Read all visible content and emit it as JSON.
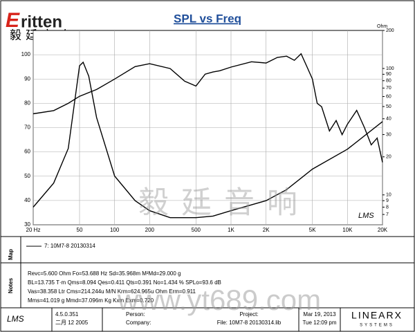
{
  "chart_data": {
    "type": "line",
    "title": "SPL vs Freq",
    "y2_label": "Ohm",
    "x_scale": "log",
    "y2_scale": "log",
    "grid": true,
    "xlim": [
      20,
      20000
    ],
    "xticks": [
      {
        "value": 20,
        "label": "20 Hz"
      },
      50,
      100,
      200,
      500,
      {
        "value": 1000,
        "label": "1K"
      },
      {
        "value": 2000,
        "label": "2K"
      },
      {
        "value": 5000,
        "label": "5K"
      },
      {
        "value": 10000,
        "label": "10K"
      },
      {
        "value": 20000,
        "label": "20K"
      }
    ],
    "ylim": [
      30,
      110
    ],
    "yticks": [
      30,
      40,
      50,
      60,
      70,
      80,
      90,
      100
    ],
    "y2lim": [
      5.8,
      200
    ],
    "y2ticks": [
      7,
      8,
      9,
      10,
      20,
      30,
      40,
      50,
      60,
      70,
      80,
      90,
      100,
      200
    ],
    "series": [
      {
        "color": "#000000",
        "x": [
          20,
          30,
          40,
          50,
          70,
          100,
          150,
          200,
          300,
          400,
          500,
          600,
          700,
          800,
          1000,
          1500,
          2000,
          2500,
          3000,
          3500,
          4000,
          4500,
          5000,
          5500,
          6000,
          7000,
          8000,
          9000,
          10000,
          12000,
          14000,
          16000,
          18000,
          20000
        ],
        "values": [
          75.7,
          77,
          80,
          82.9,
          85.7,
          90,
          95.1,
          96.3,
          94.3,
          89.1,
          87.1,
          92,
          92.9,
          93.4,
          94.9,
          97.1,
          96.6,
          98.9,
          99.4,
          97.7,
          100.4,
          94.9,
          90,
          80,
          78.6,
          68.6,
          72.9,
          67.1,
          71.4,
          77.1,
          70,
          62.9,
          65.7,
          55.7
        ]
      },
      {
        "color": "#000000",
        "axis": "y2",
        "x": [
          20,
          30,
          40,
          50,
          53.7,
          60,
          70,
          100,
          150,
          200,
          300,
          500,
          700,
          1000,
          2000,
          3000,
          5000,
          10000,
          20000
        ],
        "values": [
          8,
          12.4,
          23.3,
          105,
          112,
          87,
          41,
          14.1,
          9,
          7.5,
          6.6,
          6.6,
          6.8,
          7.5,
          9,
          11,
          16,
          23,
          38
        ]
      }
    ]
  },
  "header": {
    "logo_mark": "E",
    "logo_text": "ritten",
    "logo_cn": "毅廷音响",
    "watermark_cn": "毅廷音响",
    "watermark_url": "www.yt689.com",
    "lms": "LMS"
  },
  "map": {
    "label": "Map",
    "legend": "7: 10M7-8   20130314"
  },
  "notes": {
    "label": "Notes",
    "lines": [
      "Revc=5.600 Ohm  Fo=53.688 Hz  Sd=35.968m M²Md=29.000 g",
      "BL=13.735 T·m  Qms=8.094  Qes=0.411  Qts=0.391  No=1.434 %  SPLo=93.6 dB",
      "Vas=38.358 Ltr  Cms=214.244u M/N  Krm=624.965u Ohm  Erm=0.911",
      "Mms=41.019 g  Mmd=37.096m Kg  Kxm  Exm=0.720"
    ]
  },
  "footer": {
    "version": "4.5.0.351",
    "build_date": "二月 12 2005",
    "person": "Person:",
    "company": "Company:",
    "project": "Project:",
    "file": "File: 10M7-8  20130314.lib",
    "date": "Mar 19, 2013",
    "time": "Tue 12:09 pm",
    "brand": "LINEARX",
    "brand_sub": "SYSTEMS"
  }
}
